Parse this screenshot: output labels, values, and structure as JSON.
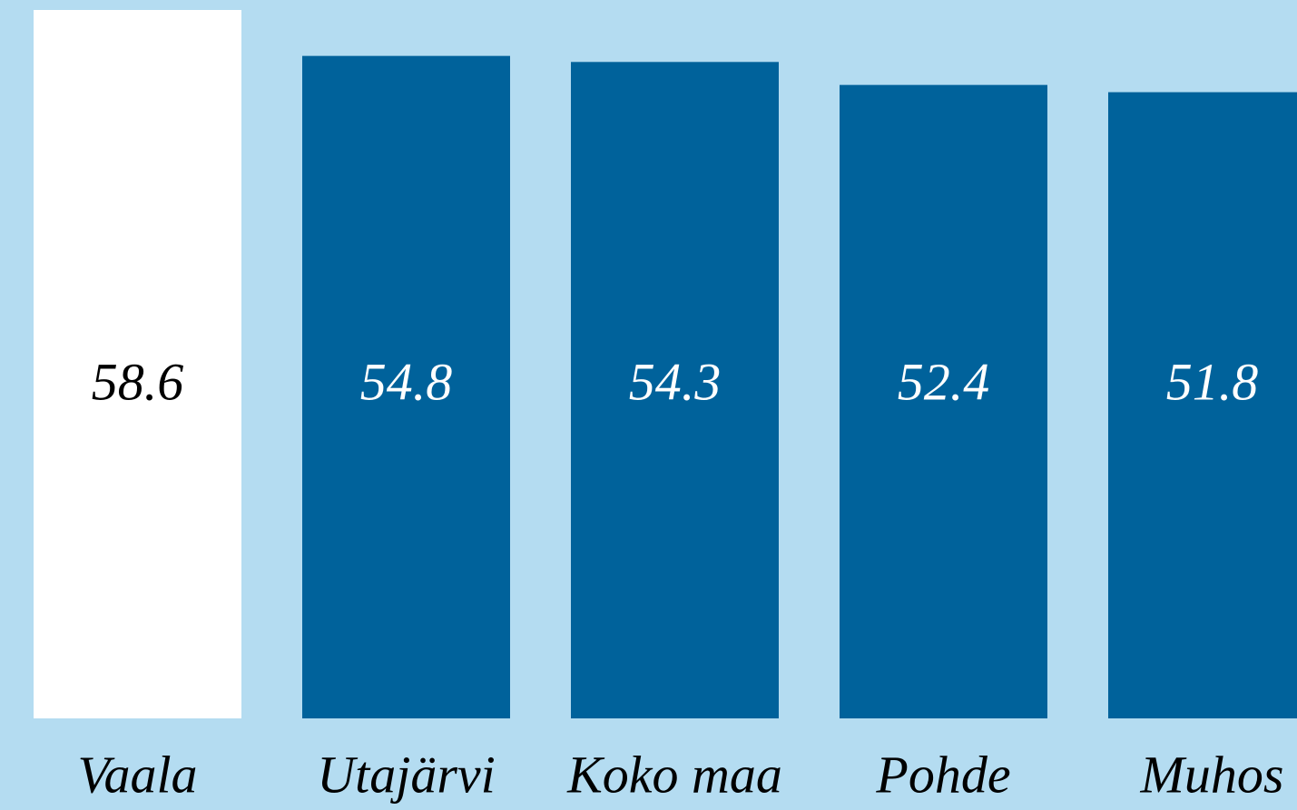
{
  "chart_data": {
    "type": "bar",
    "categories": [
      "Vaala",
      "Utajärvi",
      "Koko maa",
      "Pohde",
      "Muhos"
    ],
    "values": [
      58.6,
      54.8,
      54.3,
      52.4,
      51.8
    ],
    "colors": [
      "#ffffff",
      "#00629b",
      "#00629b",
      "#00629b",
      "#00629b"
    ]
  }
}
